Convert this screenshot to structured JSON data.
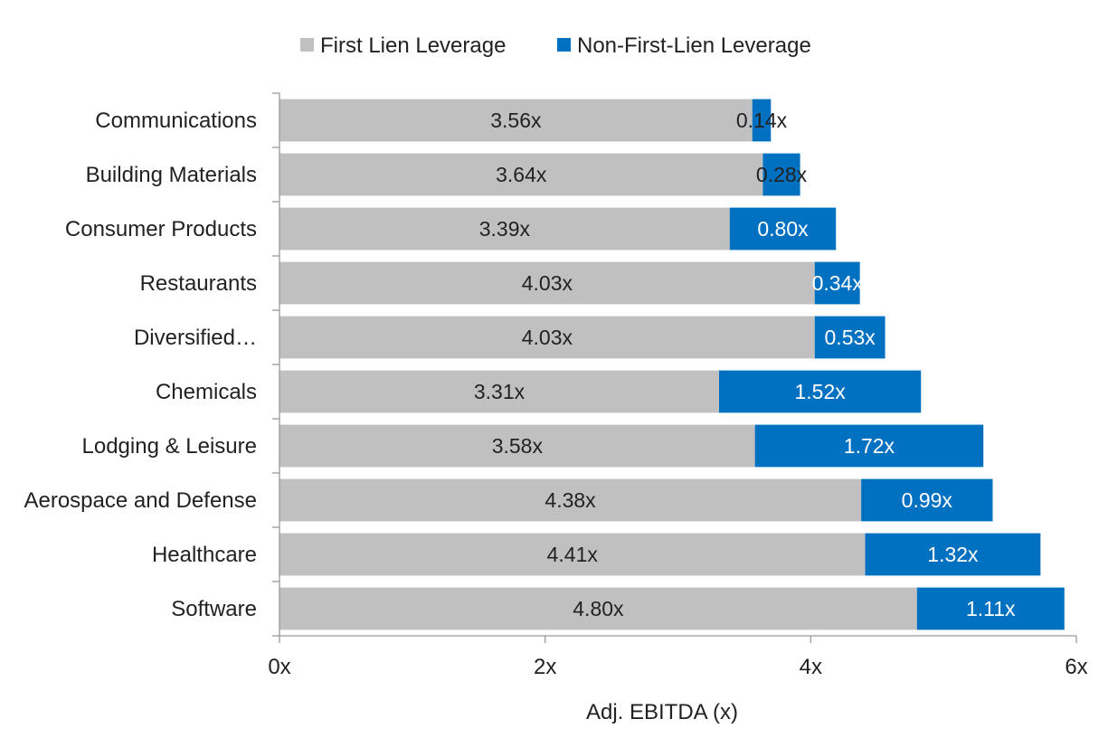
{
  "chart_data": {
    "type": "bar",
    "orientation": "horizontal",
    "stacked": true,
    "categories": [
      "Communications",
      "Building Materials",
      "Consumer Products",
      "Restaurants",
      "Diversified…",
      "Chemicals",
      "Lodging & Leisure",
      "Aerospace and Defense",
      "Healthcare",
      "Software"
    ],
    "series": [
      {
        "name": "First Lien Leverage",
        "color": "#c0c0c0",
        "values": [
          3.56,
          3.64,
          3.39,
          4.03,
          4.03,
          3.31,
          3.58,
          4.38,
          4.41,
          4.8
        ],
        "labels": [
          "3.56x",
          "3.64x",
          "3.39x",
          "4.03x",
          "4.03x",
          "3.31x",
          "3.58x",
          "4.38x",
          "4.41x",
          "4.80x"
        ],
        "label_color": "#222222"
      },
      {
        "name": "Non-First-Lien Leverage",
        "color": "#0070c0",
        "values": [
          0.14,
          0.28,
          0.8,
          0.34,
          0.53,
          1.52,
          1.72,
          0.99,
          1.32,
          1.11
        ],
        "labels": [
          "0.14x",
          "0.28x",
          "0.80x",
          "0.34x",
          "0.53x",
          "1.52x",
          "1.72x",
          "0.99x",
          "1.32x",
          "1.11x"
        ],
        "label_colors": [
          "#222222",
          "#222222",
          "#ffffff",
          "#ffffff",
          "#ffffff",
          "#ffffff",
          "#ffffff",
          "#ffffff",
          "#ffffff",
          "#ffffff"
        ]
      }
    ],
    "xlabel": "Adj. EBITDA (x)",
    "xlim": [
      0,
      6
    ],
    "xticks": [
      0,
      2,
      4,
      6
    ],
    "xtick_labels": [
      "0x",
      "2x",
      "4x",
      "6x"
    ],
    "legend_position": "top",
    "grid": false
  }
}
